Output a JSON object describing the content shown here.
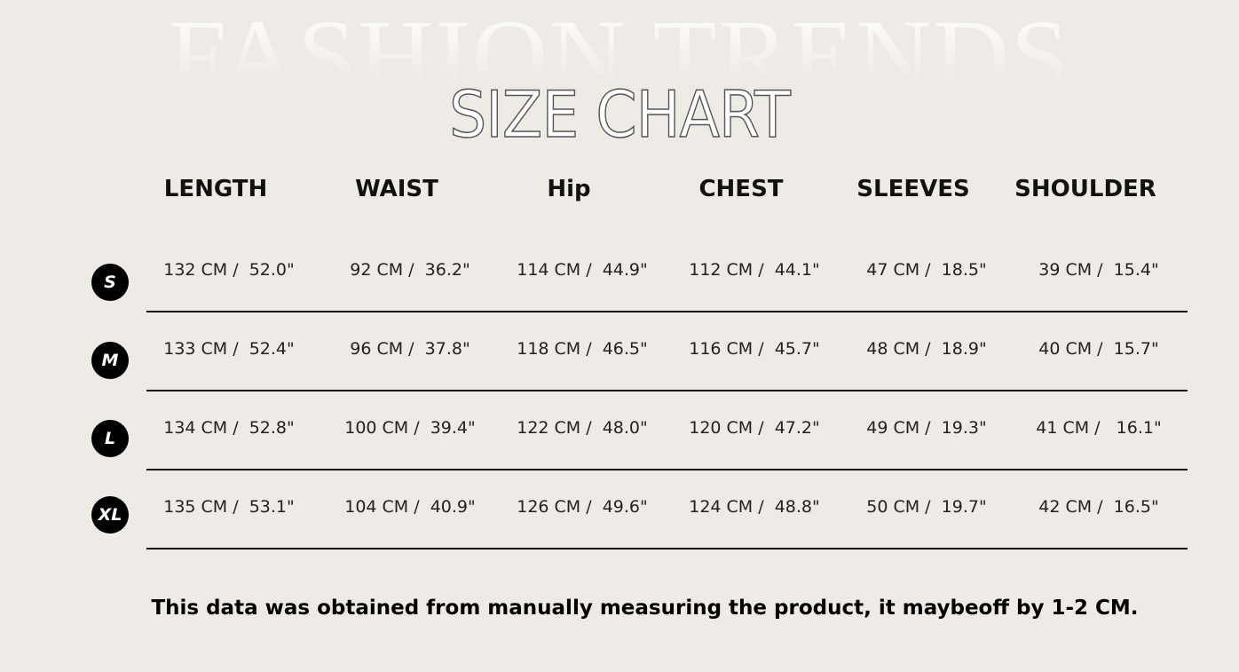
{
  "watermark": "FASHION TRENDS",
  "title": "SIZE CHART",
  "columns": [
    "LENGTH",
    "WAIST",
    "Hip",
    "CHEST",
    "SLEEVES",
    "SHOULDER"
  ],
  "rows": [
    {
      "size": "S",
      "values": [
        "132 CM /  52.0\"",
        "92 CM /  36.2\"",
        "114 CM /  44.9\"",
        "112 CM /  44.1\"",
        "47 CM /  18.5\"",
        "39 CM /  15.4\""
      ]
    },
    {
      "size": "M",
      "values": [
        "133 CM /  52.4\"",
        "96 CM /  37.8\"",
        "118 CM /  46.5\"",
        "116 CM /  45.7\"",
        "48 CM /  18.9\"",
        "40 CM /  15.7\""
      ]
    },
    {
      "size": "L",
      "values": [
        "134 CM /  52.8\"",
        "100 CM /  39.4\"",
        "122 CM /  48.0\"",
        "120 CM /  47.2\"",
        "49 CM /  19.3\"",
        "41 CM /   16.1\""
      ]
    },
    {
      "size": "XL",
      "values": [
        "135 CM /  53.1\"",
        "104 CM /  40.9\"",
        "126 CM /  49.6\"",
        "124 CM /  48.8\"",
        "50 CM /  19.7\"",
        "42 CM /  16.5\""
      ]
    }
  ],
  "footnote": "This data was obtained from manually measuring the product, it maybeoff by 1-2 CM."
}
